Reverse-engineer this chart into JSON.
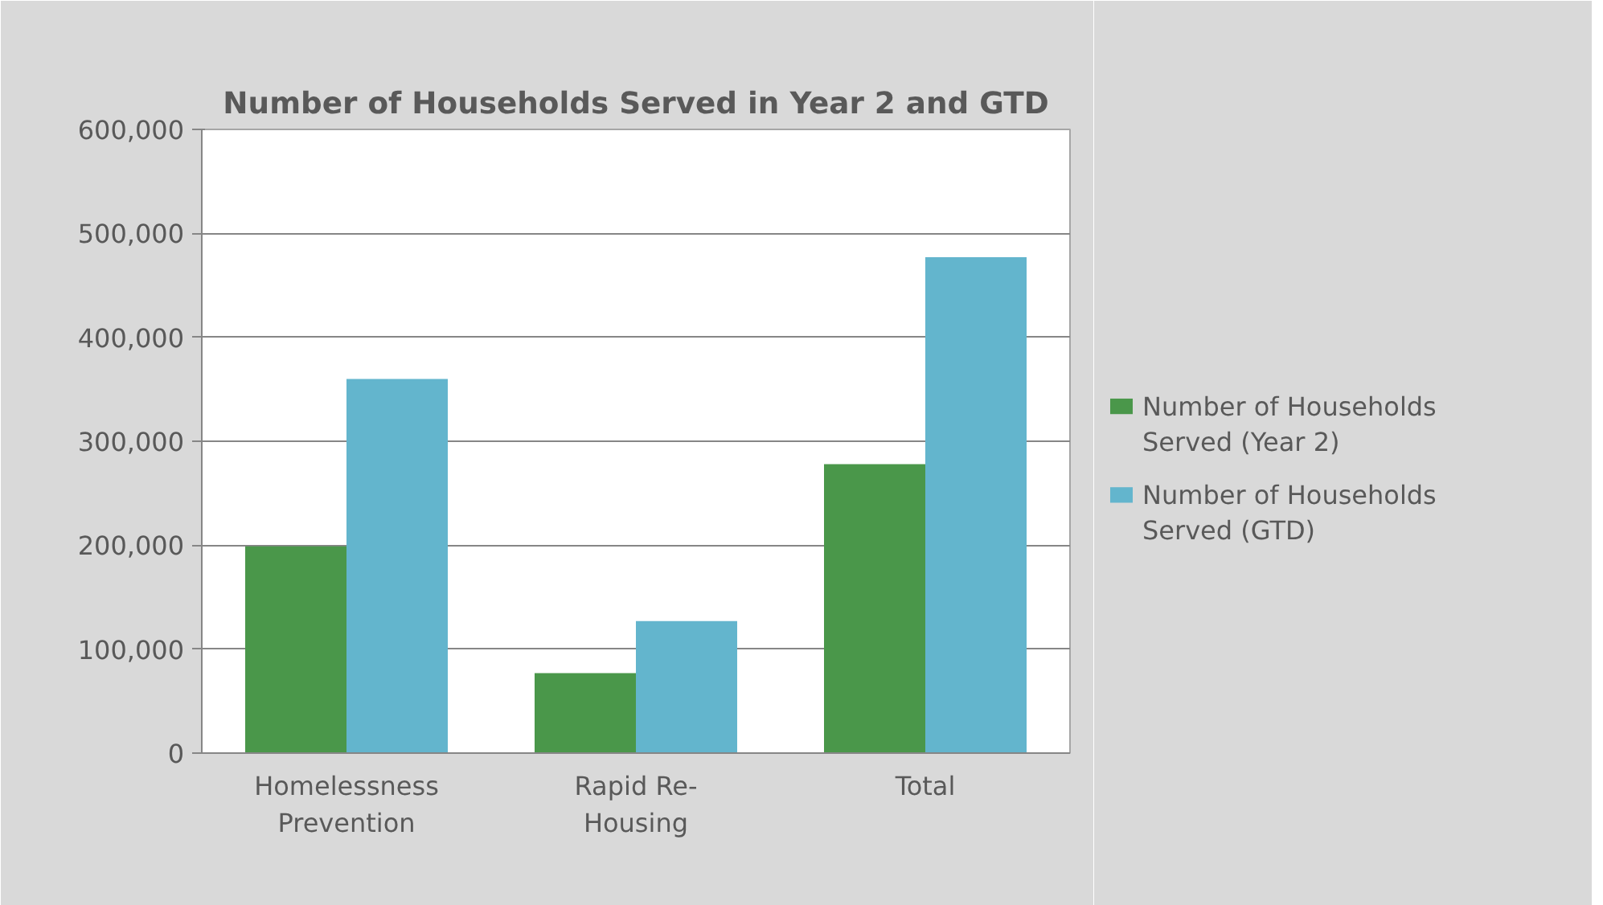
{
  "chart_data": {
    "type": "bar",
    "title": "Number of Households Served in Year 2 and GTD",
    "categories": [
      "Homelessness Prevention",
      "Rapid Re-Housing",
      "Total"
    ],
    "series": [
      {
        "name": "Number of Households Served (Year 2)",
        "color": "#4a974a",
        "values": [
          199000,
          77000,
          278000
        ]
      },
      {
        "name": "Number of Households Served (GTD)",
        "color": "#63b5cd",
        "values": [
          360000,
          127000,
          477000
        ]
      }
    ],
    "ylim": [
      0,
      600000
    ],
    "yticks": [
      {
        "value": 0,
        "label": "0"
      },
      {
        "value": 100000,
        "label": "100,000"
      },
      {
        "value": 200000,
        "label": "200,000"
      },
      {
        "value": 300000,
        "label": "300,000"
      },
      {
        "value": 400000,
        "label": "400,000"
      },
      {
        "value": 500000,
        "label": "500,000"
      },
      {
        "value": 600000,
        "label": "600,000"
      }
    ],
    "grid": "y",
    "legend": "right"
  }
}
